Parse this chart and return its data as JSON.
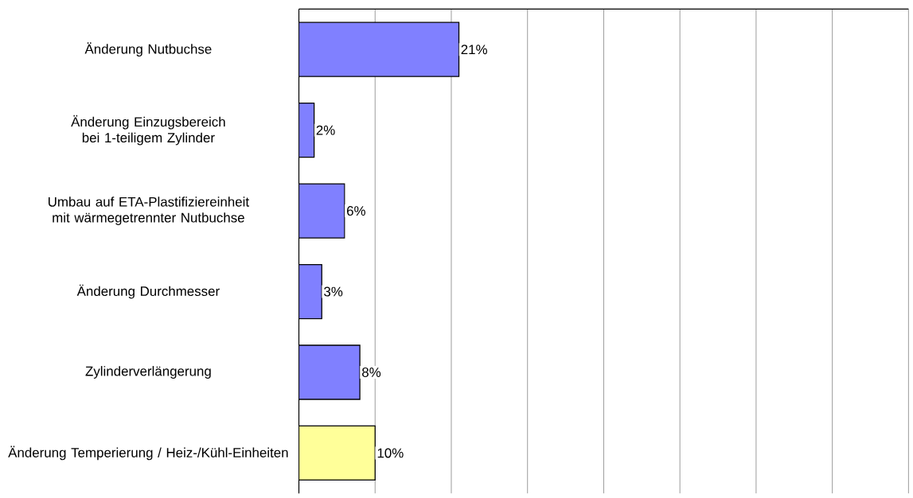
{
  "chart_data": {
    "type": "bar",
    "orientation": "horizontal",
    "categories": [
      "Änderung Nutbuchse",
      "Änderung Einzugsbereich bei 1-teiligem Zylinder",
      "Umbau auf ETA-Plastifiziereinheit mit wärmegetrennter Nutbuchse",
      "Änderung Durchmesser",
      "Zylinderverlängerung",
      "Änderung Temperierung / Heiz-/Kühl-Einheiten"
    ],
    "values": [
      21,
      2,
      6,
      3,
      8,
      10
    ],
    "value_labels": [
      "21%",
      "2%",
      "6%",
      "3%",
      "8%",
      "10%"
    ],
    "colors": [
      "#8080ff",
      "#8080ff",
      "#8080ff",
      "#8080ff",
      "#8080ff",
      "#ffff99"
    ],
    "xlim": [
      0,
      80
    ],
    "xticks": [
      {
        "value": 0,
        "label": null
      },
      {
        "value": 10,
        "label": null
      },
      {
        "value": 20,
        "label": null
      },
      {
        "value": 30,
        "label": null
      },
      {
        "value": 40,
        "label": null
      },
      {
        "value": 50,
        "label": null
      },
      {
        "value": 60,
        "label": null
      },
      {
        "value": 70,
        "label": null
      },
      {
        "value": 80,
        "label": null
      }
    ],
    "grid": "x",
    "tick_labels": "y"
  }
}
